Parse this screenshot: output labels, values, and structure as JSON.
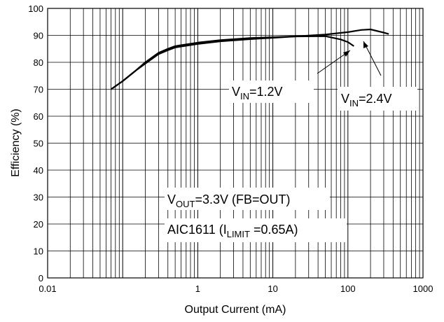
{
  "chart_data": {
    "type": "line",
    "xscale": "log",
    "xlim": [
      0.01,
      1000
    ],
    "ylim": [
      0,
      100
    ],
    "grid": true,
    "xlabel": "Output Current (mA)",
    "ylabel": "Efficiency (%)",
    "xticks": [
      "0.01",
      "1",
      "10",
      "100",
      "1000"
    ],
    "yticks": [
      "0",
      "10",
      "20",
      "30",
      "40",
      "50",
      "60",
      "70",
      "80",
      "90",
      "100"
    ],
    "series": [
      {
        "name": "VIN=1.2V",
        "x": [
          0.07,
          0.1,
          0.15,
          0.2,
          0.3,
          0.4,
          0.5,
          1,
          2,
          5,
          10,
          20,
          50,
          80,
          100,
          120
        ],
        "y": [
          70,
          73,
          77,
          80,
          83.5,
          85,
          86,
          87.3,
          88.2,
          89,
          89.3,
          89.6,
          89.7,
          88.5,
          87.5,
          86
        ]
      },
      {
        "name": "VIN=2.4V",
        "x": [
          0.07,
          0.1,
          0.15,
          0.2,
          0.3,
          0.4,
          0.5,
          1,
          2,
          5,
          10,
          20,
          50,
          100,
          150,
          200,
          300,
          350
        ],
        "y": [
          70,
          73,
          77,
          79.5,
          83,
          84.5,
          85.5,
          86.8,
          87.8,
          88.6,
          89.1,
          89.6,
          90.3,
          91.2,
          92,
          92.2,
          91,
          90.5
        ]
      }
    ],
    "annotations": {
      "vin1": {
        "main": "V",
        "sub": "IN",
        "rest": "=1.2V"
      },
      "vin2": {
        "main": "V",
        "sub": "IN",
        "rest": "=2.4V"
      },
      "vout": {
        "main": "V",
        "sub": "OUT",
        "rest": "=3.3V (FB=OUT)"
      },
      "aic": {
        "pre": "AIC1611 (I",
        "sub": "LIMIT",
        "rest": " =0.65A)"
      }
    }
  }
}
